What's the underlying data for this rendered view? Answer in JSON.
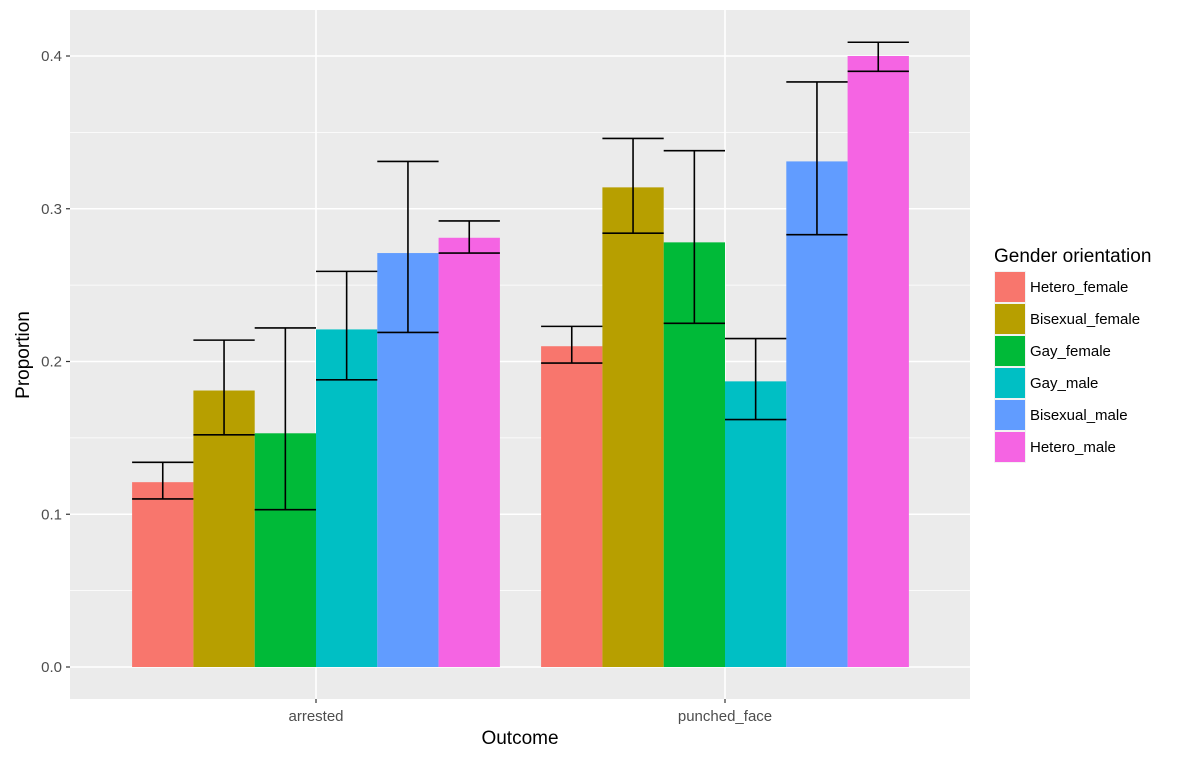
{
  "chart_data": {
    "type": "bar",
    "title": "",
    "xlabel": "Outcome",
    "ylabel": "Proportion",
    "ylim": [
      -0.04,
      0.43
    ],
    "y_ticks": [
      0.0,
      0.1,
      0.2,
      0.3,
      0.4
    ],
    "y_tick_labels": [
      "0.0",
      "0.1",
      "0.2",
      "0.3",
      "0.4"
    ],
    "categories": [
      "arrested",
      "punched_face"
    ],
    "legend": {
      "title": "Gender orientation",
      "position": "right"
    },
    "series": [
      {
        "name": "Hetero_female",
        "color": "#F8766D",
        "values": [
          0.121,
          0.21
        ],
        "err_low": [
          0.11,
          0.199
        ],
        "err_high": [
          0.134,
          0.223
        ]
      },
      {
        "name": "Bisexual_female",
        "color": "#B79F00",
        "values": [
          0.181,
          0.314
        ],
        "err_low": [
          0.152,
          0.284
        ],
        "err_high": [
          0.214,
          0.346
        ]
      },
      {
        "name": "Gay_female",
        "color": "#00BA38",
        "values": [
          0.153,
          0.278
        ],
        "err_low": [
          0.103,
          0.225
        ],
        "err_high": [
          0.222,
          0.338
        ]
      },
      {
        "name": "Gay_male",
        "color": "#00BFC4",
        "values": [
          0.221,
          0.187
        ],
        "err_low": [
          0.188,
          0.162
        ],
        "err_high": [
          0.259,
          0.215
        ]
      },
      {
        "name": "Bisexual_male",
        "color": "#619CFF",
        "values": [
          0.271,
          0.331
        ],
        "err_low": [
          0.219,
          0.283
        ],
        "err_high": [
          0.331,
          0.383
        ]
      },
      {
        "name": "Hetero_male",
        "color": "#F564E3",
        "values": [
          0.281,
          0.4
        ],
        "err_low": [
          0.271,
          0.39
        ],
        "err_high": [
          0.292,
          0.409
        ]
      }
    ]
  }
}
